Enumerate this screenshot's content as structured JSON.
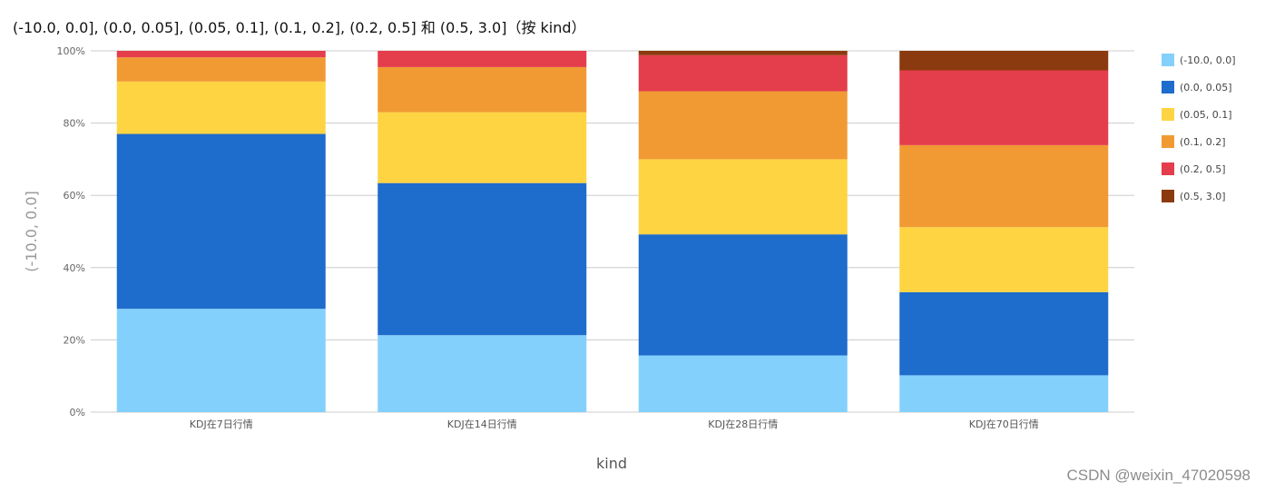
{
  "title": "(-10.0, 0.0], (0.0, 0.05], (0.05, 0.1], (0.1, 0.2], (0.2, 0.5] 和 (0.5, 3.0]（按 kind）",
  "watermark": "CSDN @weixin_47020598",
  "chart_data": {
    "type": "bar",
    "stacked": true,
    "percent_stacked": true,
    "title": "(-10.0, 0.0], (0.0, 0.05], (0.05, 0.1], (0.1, 0.2], (0.2, 0.5] 和 (0.5, 3.0]（按 kind）",
    "xlabel": "kind",
    "ylabel": "(-10.0, 0.0]",
    "ylim": [
      0,
      100
    ],
    "yticks": [
      "0%",
      "20%",
      "40%",
      "60%",
      "80%",
      "100%"
    ],
    "grid": true,
    "legend_position": "right",
    "categories": [
      "KDJ在7日行情",
      "KDJ在14日行情",
      "KDJ在28日行情",
      "KDJ在70日行情"
    ],
    "series": [
      {
        "name": "(-10.0, 0.0]",
        "color": "#84d0fd",
        "values": [
          28.6,
          21.3,
          15.7,
          10.2
        ]
      },
      {
        "name": "(0.0, 0.05]",
        "color": "#1e6ccb",
        "values": [
          48.4,
          42.1,
          33.5,
          23.0
        ]
      },
      {
        "name": "(0.05, 0.1]",
        "color": "#fed443",
        "values": [
          14.5,
          19.6,
          20.8,
          18.0
        ]
      },
      {
        "name": "(0.1, 0.2]",
        "color": "#f19a34",
        "values": [
          6.7,
          12.5,
          18.8,
          22.7
        ]
      },
      {
        "name": "(0.2, 0.5]",
        "color": "#e43d4b",
        "values": [
          1.8,
          4.5,
          10.0,
          20.7
        ]
      },
      {
        "name": "(0.5, 3.0]",
        "color": "#8b3a0f",
        "values": [
          0.0,
          0.0,
          1.2,
          5.4
        ]
      }
    ]
  }
}
